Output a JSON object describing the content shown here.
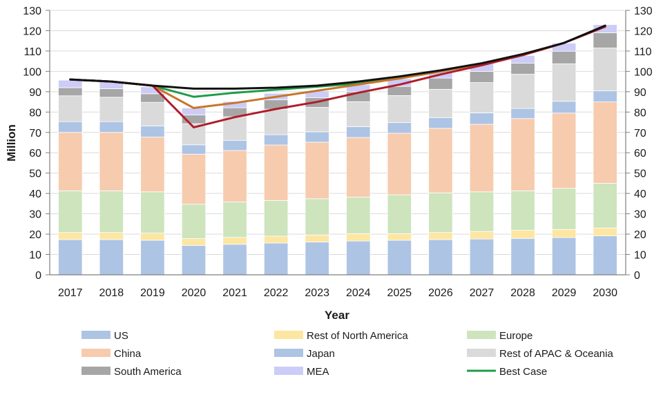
{
  "chart_data": {
    "type": "bar",
    "stacked": true,
    "categories": [
      "2017",
      "2018",
      "2019",
      "2020",
      "2021",
      "2022",
      "2023",
      "2024",
      "2025",
      "2026",
      "2027",
      "2028",
      "2029",
      "2030"
    ],
    "series": [
      {
        "name": "US",
        "color": "#aec4e4",
        "values": [
          17.3,
          17.3,
          17.0,
          14.4,
          15.0,
          15.6,
          16.1,
          16.6,
          17.0,
          17.3,
          17.6,
          17.9,
          18.3,
          19.2
        ]
      },
      {
        "name": "Rest of North America",
        "color": "#fde6a1",
        "values": [
          3.5,
          3.5,
          3.5,
          3.4,
          3.4,
          3.4,
          3.5,
          3.6,
          3.2,
          3.5,
          3.7,
          4.0,
          4.0,
          3.8
        ]
      },
      {
        "name": "Europe",
        "color": "#cde4bd",
        "values": [
          20.5,
          20.5,
          20.3,
          16.9,
          17.4,
          17.5,
          17.8,
          18.0,
          19.1,
          19.5,
          19.5,
          19.4,
          20.2,
          22.0
        ]
      },
      {
        "name": "China",
        "color": "#f7cbae",
        "values": [
          28.7,
          28.7,
          26.9,
          24.6,
          25.3,
          27.3,
          27.8,
          29.3,
          30.3,
          31.7,
          33.2,
          35.5,
          37.0,
          40.0
        ]
      },
      {
        "name": "Japan",
        "color": "#aec4e4",
        "values": [
          5.3,
          5.3,
          5.5,
          4.6,
          5.0,
          5.1,
          5.1,
          5.3,
          5.2,
          5.3,
          5.6,
          5.0,
          5.8,
          5.5
        ]
      },
      {
        "name": "Rest of APAC & Oceania",
        "color": "#dadada",
        "values": [
          12.7,
          12.0,
          11.6,
          10.4,
          11.6,
          12.5,
          12.0,
          12.3,
          13.3,
          13.9,
          14.9,
          16.8,
          18.4,
          21.0
        ]
      },
      {
        "name": "South America",
        "color": "#a6a6a6",
        "values": [
          4.0,
          4.2,
          4.2,
          4.3,
          4.4,
          4.6,
          4.8,
          4.9,
          4.5,
          5.5,
          5.5,
          5.4,
          6.2,
          7.5
        ]
      },
      {
        "name": "MEA",
        "color": "#ccccf7",
        "values": [
          3.7,
          3.5,
          3.4,
          3.4,
          3.1,
          3.2,
          3.3,
          3.4,
          3.8,
          3.7,
          3.8,
          3.8,
          4.0,
          4.0
        ]
      }
    ],
    "lines": [
      {
        "name": "Best Case",
        "color": "#1f9c48",
        "values": [
          96,
          95,
          93,
          87.5,
          89.5,
          91,
          92.5,
          94,
          96.5,
          100,
          103.5,
          108,
          114,
          122
        ]
      },
      {
        "name": "",
        "color": "#c8752a",
        "values": [
          96,
          95,
          93,
          82,
          84.5,
          87.5,
          90.5,
          93.5,
          96.5,
          100,
          103.5,
          108,
          114,
          122
        ]
      },
      {
        "name": "",
        "color": "#b01c2a",
        "values": [
          96,
          95,
          93,
          72.5,
          77.5,
          81.5,
          85,
          89.5,
          93.5,
          98.5,
          103,
          108,
          114,
          122
        ]
      },
      {
        "name": "",
        "color": "#111111",
        "values": [
          96,
          95,
          93,
          91.5,
          91.5,
          92,
          93,
          95,
          97.5,
          100.5,
          104,
          108.5,
          114,
          122.5
        ]
      }
    ],
    "ylim": [
      0,
      130
    ],
    "yticks": [
      0,
      10,
      20,
      30,
      40,
      50,
      60,
      70,
      80,
      90,
      100,
      110,
      120,
      130
    ],
    "secondary_yticks": [
      0,
      10,
      20,
      30,
      40,
      50,
      60,
      70,
      80,
      90,
      100,
      110,
      120,
      130
    ],
    "xlabel": "Year",
    "ylabel": "Million",
    "grid": true,
    "legend": {
      "position": "bottom",
      "columns": 3,
      "items": [
        {
          "label": "US",
          "kind": "bar",
          "color": "#aec4e4"
        },
        {
          "label": "Rest of North America",
          "kind": "bar",
          "color": "#fde6a1"
        },
        {
          "label": "Europe",
          "kind": "bar",
          "color": "#cde4bd"
        },
        {
          "label": "China",
          "kind": "bar",
          "color": "#f7cbae"
        },
        {
          "label": "Japan",
          "kind": "bar",
          "color": "#aec4e4"
        },
        {
          "label": "Rest of APAC & Oceania",
          "kind": "bar",
          "color": "#dadada"
        },
        {
          "label": "South America",
          "kind": "bar",
          "color": "#a6a6a6"
        },
        {
          "label": "MEA",
          "kind": "bar",
          "color": "#ccccf7"
        },
        {
          "label": "Best Case",
          "kind": "line",
          "color": "#1f9c48"
        }
      ]
    }
  }
}
